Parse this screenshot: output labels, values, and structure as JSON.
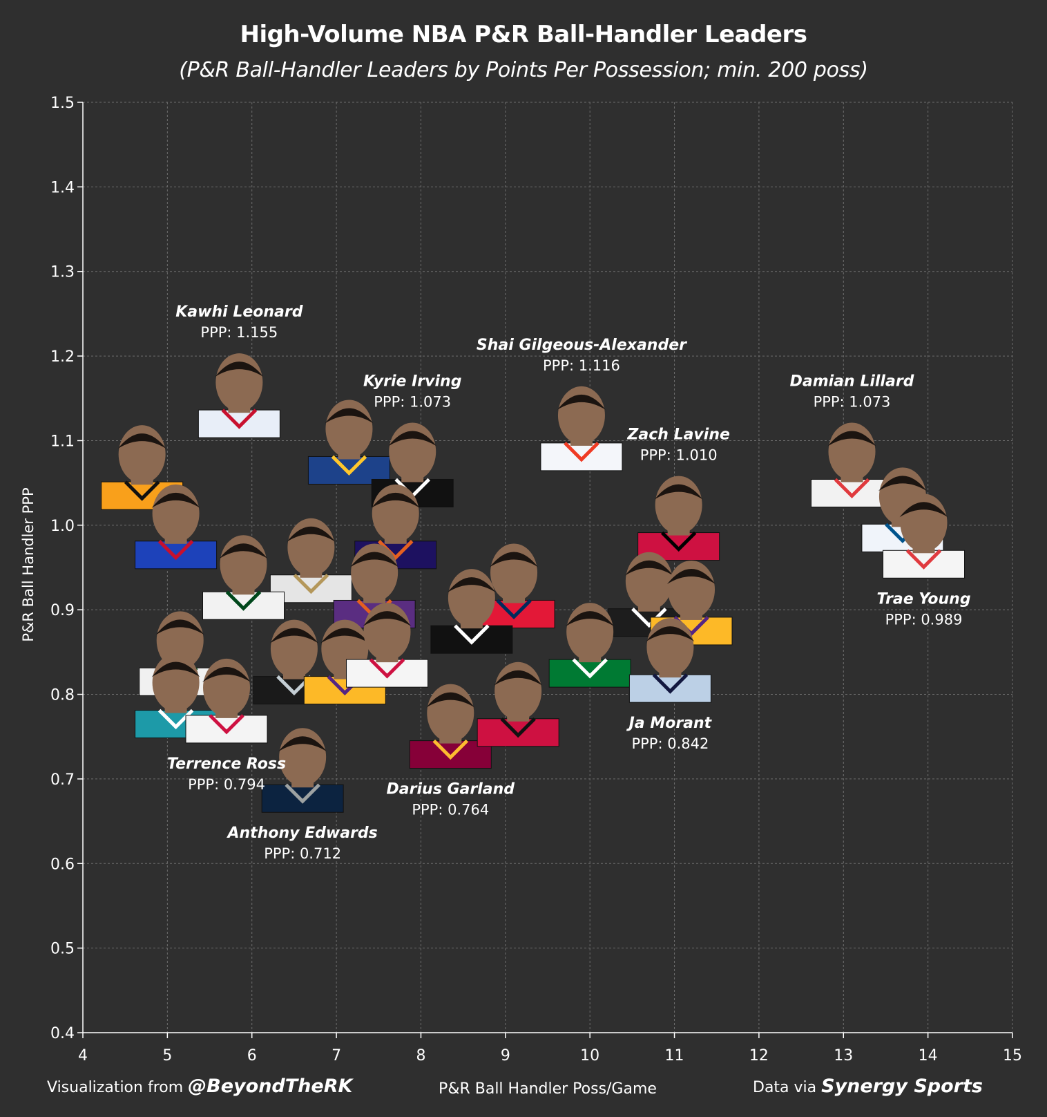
{
  "title": "High-Volume NBA P&R Ball-Handler Leaders",
  "subtitle": "(P&R Ball-Handler Leaders by Points Per Possession; min. 200 poss)",
  "footer": {
    "left_prefix": "Visualization from ",
    "left_handle": "@BeyondTheRK",
    "right_prefix": "Data via ",
    "right_source": "Synergy Sports"
  },
  "colors": {
    "background": "#2f2f2f",
    "grid": "#6e6e6e",
    "axis": "#ffffff",
    "text": "#ffffff",
    "marker_face": "#8c6a52"
  },
  "chart_data": {
    "type": "scatter",
    "xlabel": "P&R Ball Handler Poss/Game",
    "ylabel": "P&R Ball Handler PPP",
    "xlim": [
      4,
      15
    ],
    "ylim": [
      0.4,
      1.5
    ],
    "xticks": [
      "4",
      "5",
      "6",
      "7",
      "8",
      "9",
      "10",
      "11",
      "12",
      "13",
      "14",
      "15"
    ],
    "yticks": [
      "0.4",
      "0.5",
      "0.6",
      "0.7",
      "0.8",
      "0.9",
      "1.0",
      "1.1",
      "1.2",
      "1.3",
      "1.4",
      "1.5"
    ],
    "grid": true,
    "label_prefix": "PPP: ",
    "points": [
      {
        "x": 5.85,
        "y": 1.155,
        "name": "Kawhi Leonard",
        "ppp": "1.155",
        "jersey": "#e8eef8",
        "trim": "#c8102e",
        "labeled": true
      },
      {
        "x": 7.15,
        "y": 1.1,
        "jersey": "#1d428a",
        "trim": "#ffc72c"
      },
      {
        "x": 7.9,
        "y": 1.073,
        "name": "Kyrie Irving",
        "ppp": "1.073",
        "jersey": "#111111",
        "trim": "#ffffff",
        "labeled": true
      },
      {
        "x": 9.9,
        "y": 1.116,
        "name": "Shai Gilgeous-Alexander",
        "ppp": "1.116",
        "jersey": "#f4f6fa",
        "trim": "#ef3b24",
        "labeled": true
      },
      {
        "x": 13.1,
        "y": 1.073,
        "name": "Damian Lillard",
        "ppp": "1.073",
        "jersey": "#f2f2f2",
        "trim": "#e03a3e",
        "labeled": true
      },
      {
        "x": 13.7,
        "y": 1.02,
        "jersey": "#f0f4fa",
        "trim": "#00538c"
      },
      {
        "x": 11.05,
        "y": 1.01,
        "name": "Zach Lavine",
        "ppp": "1.010",
        "jersey": "#ce1141",
        "trim": "#000000",
        "labeled": true
      },
      {
        "x": 13.95,
        "y": 0.989,
        "name": "Trae Young",
        "ppp": "0.989",
        "jersey": "#f5f5f5",
        "trim": "#e03a3e",
        "labeled": true
      },
      {
        "x": 4.7,
        "y": 1.07,
        "jersey": "#f9a01b",
        "trim": "#111111"
      },
      {
        "x": 5.1,
        "y": 1.0,
        "jersey": "#1d42ba",
        "trim": "#c8102e"
      },
      {
        "x": 7.7,
        "y": 1.0,
        "jersey": "#1d1160",
        "trim": "#e56020"
      },
      {
        "x": 6.7,
        "y": 0.96,
        "jersey": "#e5e5e5",
        "trim": "#b4975a"
      },
      {
        "x": 5.9,
        "y": 0.94,
        "jersey": "#f2f2f2",
        "trim": "#00471b"
      },
      {
        "x": 7.45,
        "y": 0.93,
        "jersey": "#5a2d81",
        "trim": "#e56020"
      },
      {
        "x": 9.1,
        "y": 0.93,
        "jersey": "#e31837",
        "trim": "#002b5c"
      },
      {
        "x": 8.6,
        "y": 0.9,
        "jersey": "#111111",
        "trim": "#ffffff"
      },
      {
        "x": 10.7,
        "y": 0.92,
        "jersey": "#1d1d1d",
        "trim": "#ffffff"
      },
      {
        "x": 11.2,
        "y": 0.91,
        "jersey": "#fdb927",
        "trim": "#552583"
      },
      {
        "x": 10.0,
        "y": 0.86,
        "jersey": "#007a33",
        "trim": "#ffffff"
      },
      {
        "x": 5.15,
        "y": 0.85,
        "jersey": "#f0f0f0",
        "trim": "#00471b"
      },
      {
        "x": 5.1,
        "y": 0.8,
        "jersey": "#1d9aa8",
        "trim": "#ffffff"
      },
      {
        "x": 6.5,
        "y": 0.84,
        "jersey": "#1a1a1a",
        "trim": "#c4ced4"
      },
      {
        "x": 7.1,
        "y": 0.84,
        "jersey": "#fdb927",
        "trim": "#552583"
      },
      {
        "x": 7.6,
        "y": 0.86,
        "jersey": "#f5f5f5",
        "trim": "#ce1141"
      },
      {
        "x": 10.95,
        "y": 0.842,
        "name": "Ja Morant",
        "ppp": "0.842",
        "jersey": "#bcd0e6",
        "trim": "#12173f",
        "labeled": true
      },
      {
        "x": 5.7,
        "y": 0.794,
        "name": "Terrence Ross",
        "ppp": "0.794",
        "jersey": "#f4f4f4",
        "trim": "#ce1141",
        "labeled": true
      },
      {
        "x": 8.35,
        "y": 0.764,
        "name": "Darius Garland",
        "ppp": "0.764",
        "jersey": "#860038",
        "trim": "#fdbb30",
        "labeled": true
      },
      {
        "x": 9.15,
        "y": 0.79,
        "jersey": "#ce1141",
        "trim": "#111111"
      },
      {
        "x": 6.6,
        "y": 0.712,
        "name": "Anthony Edwards",
        "ppp": "0.712",
        "jersey": "#0c2340",
        "trim": "#9ea2a2",
        "labeled": true
      }
    ]
  }
}
